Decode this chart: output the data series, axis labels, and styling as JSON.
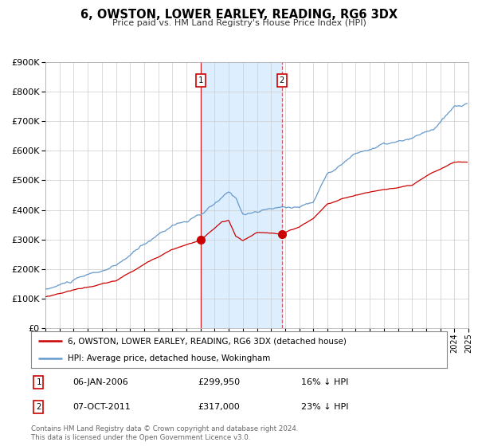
{
  "title": "6, OWSTON, LOWER EARLEY, READING, RG6 3DX",
  "subtitle": "Price paid vs. HM Land Registry's House Price Index (HPI)",
  "legend_line1": "6, OWSTON, LOWER EARLEY, READING, RG6 3DX (detached house)",
  "legend_line2": "HPI: Average price, detached house, Wokingham",
  "footnote1": "Contains HM Land Registry data © Crown copyright and database right 2024.",
  "footnote2": "This data is licensed under the Open Government Licence v3.0.",
  "sale1_date": "06-JAN-2006",
  "sale1_price": "£299,950",
  "sale1_hpi": "16% ↓ HPI",
  "sale2_date": "07-OCT-2011",
  "sale2_price": "£317,000",
  "sale2_hpi": "23% ↓ HPI",
  "sale1_price_val": 299950,
  "sale2_price_val": 317000,
  "sale1_year": 2006.02,
  "sale2_year": 2011.76,
  "red_line_color": "#cc0000",
  "blue_line_color": "#6699cc",
  "shading_color": "#ddeeff",
  "background_color": "#ffffff",
  "grid_color": "#cccccc",
  "ylim_max": 900000,
  "ylim_min": 0,
  "xlim_min": 1995,
  "xlim_max": 2025
}
